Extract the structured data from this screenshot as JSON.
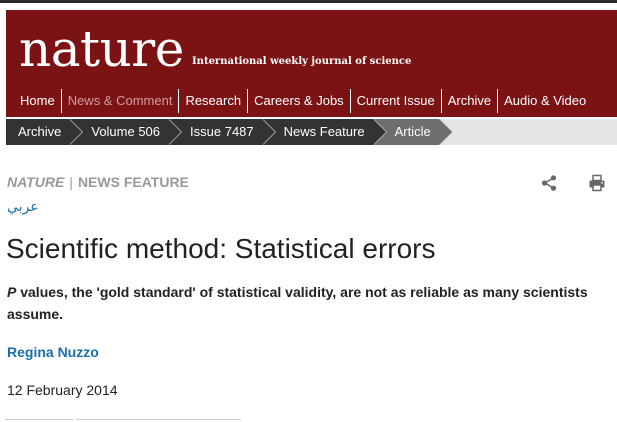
{
  "header": {
    "logo": "nature",
    "tagline": "International weekly journal of science",
    "nav": [
      {
        "label": "Home"
      },
      {
        "label": "News & Comment"
      },
      {
        "label": "Research"
      },
      {
        "label": "Careers & Jobs"
      },
      {
        "label": "Current Issue"
      },
      {
        "label": "Archive"
      },
      {
        "label": "Audio & Video"
      }
    ],
    "nav_active": "News & Comment"
  },
  "breadcrumb": [
    "Archive",
    "Volume 506",
    "Issue 7487",
    "News Feature",
    "Article"
  ],
  "article": {
    "journal": "NATURE",
    "separator": "|",
    "section": "NEWS FEATURE",
    "translation_link": "عربي",
    "title": "Scientific method: Statistical errors",
    "standfirst_lead": "P",
    "standfirst_rest": " values, the 'gold standard' of statistical validity, are not as reliable as many scientists assume.",
    "author": "Regina Nuzzo",
    "date": "12 February 2014"
  },
  "icons": {
    "share": "share-icon",
    "print": "print-icon"
  },
  "colors": {
    "masthead": "#7b1315",
    "breadcrumb": "#333333",
    "breadcrumb_current": "#6e6e6e",
    "link": "#1a6ea8",
    "nav_active": "#d39c9c"
  }
}
